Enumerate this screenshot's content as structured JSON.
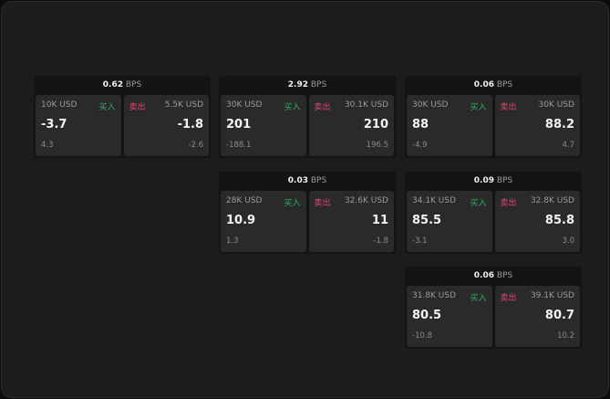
{
  "unit": "BPS",
  "buy_label": "买入",
  "sell_label": "卖出",
  "colors": {
    "buy": "#2fae5c",
    "sell": "#e0456e",
    "background": "#1c1c1c"
  },
  "cards": [
    {
      "spread": "0.62",
      "bid": {
        "size": "10K USD",
        "price": "-3.7",
        "change": "4.3"
      },
      "ask": {
        "size": "5.5K USD",
        "price": "-1.8",
        "change": "-2.6"
      }
    },
    {
      "spread": "2.92",
      "bid": {
        "size": "30K USD",
        "price": "201",
        "change": "-188.1"
      },
      "ask": {
        "size": "30.1K USD",
        "price": "210",
        "change": "196.5"
      }
    },
    {
      "spread": "0.06",
      "bid": {
        "size": "30K USD",
        "price": "88",
        "change": "-4.9"
      },
      "ask": {
        "size": "30K USD",
        "price": "88.2",
        "change": "4.7"
      }
    },
    {
      "spread": "0.03",
      "bid": {
        "size": "28K USD",
        "price": "10.9",
        "change": "1.3"
      },
      "ask": {
        "size": "32.6K USD",
        "price": "11",
        "change": "-1.8"
      }
    },
    {
      "spread": "0.09",
      "bid": {
        "size": "34.1K USD",
        "price": "85.5",
        "change": "-3.1"
      },
      "ask": {
        "size": "32.8K USD",
        "price": "85.8",
        "change": "3.0"
      }
    },
    {
      "spread": "0.06",
      "bid": {
        "size": "31.8K USD",
        "price": "80.5",
        "change": "-10.8"
      },
      "ask": {
        "size": "39.1K USD",
        "price": "80.7",
        "change": "10.2"
      }
    }
  ]
}
